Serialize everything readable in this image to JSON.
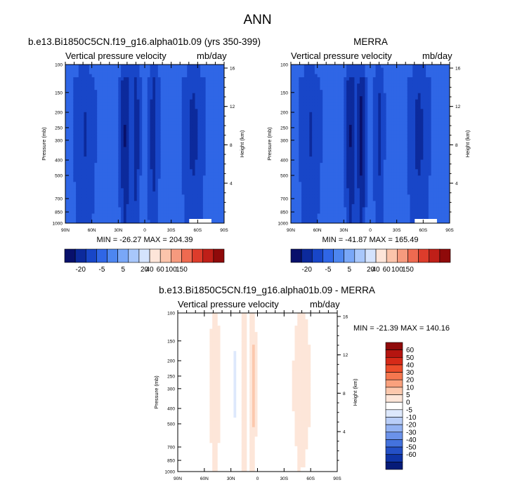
{
  "figure": {
    "title": "ANN"
  },
  "panels": [
    {
      "id": "model",
      "heading": "b.e13.Bi1850C5CN.f19_g16.alpha01b.09 (yrs 350-399)",
      "left_label": "Vertical pressure velocity",
      "right_label": "mb/day",
      "stats": "MIN = -26.27   MAX = 204.39",
      "colorbar_labels": [
        "-20",
        "-5",
        "5",
        "20",
        "40",
        "60",
        "100",
        "150"
      ]
    },
    {
      "id": "obs",
      "heading": "MERRA",
      "left_label": "Vertical pressure velocity",
      "right_label": "mb/day",
      "stats": "MIN = -41.87   MAX = 165.49",
      "colorbar_labels": [
        "-20",
        "-5",
        "5",
        "20",
        "40",
        "60",
        "100",
        "150"
      ]
    },
    {
      "id": "diff",
      "heading": "b.e13.Bi1850C5CN.f19_g16.alpha01b.09 - MERRA",
      "left_label": "Vertical pressure velocity",
      "right_label": "mb/day",
      "stats": "MIN = -21.39   MAX = 140.16",
      "colorbar_labels": [
        "60",
        "50",
        "40",
        "30",
        "20",
        "10",
        "5",
        "0",
        "-5",
        "-10",
        "-20",
        "-30",
        "-40",
        "-50",
        "-60"
      ]
    }
  ],
  "colors": {
    "abs_scale": [
      "#08106b",
      "#0c2a9c",
      "#1846c8",
      "#2f66e6",
      "#4d86f0",
      "#79a7f7",
      "#a8c7fb",
      "#d4e3fd",
      "#fde5d9",
      "#fbc4ab",
      "#f69a7e",
      "#ee6a50",
      "#dd3c2b",
      "#bf1f18",
      "#8f0a0a"
    ],
    "diff_scale": [
      "#8f0a0a",
      "#b51510",
      "#d62a18",
      "#ec4d2b",
      "#f5774f",
      "#f9a17d",
      "#fcc8ad",
      "#fde6d9",
      "#ffffff",
      "#dde8fc",
      "#b9cef8",
      "#93b2f2",
      "#6b92ea",
      "#4472dd",
      "#2450c6",
      "#0f34a6",
      "#061b78"
    ]
  },
  "chart_data": [
    {
      "type": "heatmap",
      "title": "b.e13.Bi1850C5CN.f19_g16.alpha01b.09 (yrs 350-399)",
      "variable": "Vertical pressure velocity",
      "units": "mb/day",
      "x_ticks": [
        "90N",
        "60N",
        "30N",
        "0",
        "30S",
        "60S",
        "90S"
      ],
      "y_ticks": [
        "100",
        "150",
        "200",
        "250",
        "300",
        "400",
        "500",
        "700",
        "850",
        "1000"
      ],
      "ylabel": "Pressure (mb)",
      "y2_ticks": [
        "16",
        "12",
        "8",
        "4"
      ],
      "y2label": "Height (km)",
      "min": -26.27,
      "max": 204.39,
      "levels": [
        -20,
        -5,
        5,
        20,
        40,
        60,
        100,
        150
      ],
      "features": [
        {
          "lat": 68,
          "width": 10,
          "value": -10
        },
        {
          "lat": 42,
          "width": 8,
          "value": 2
        },
        {
          "lat": 22,
          "width": 5,
          "value": -25
        },
        {
          "lat": 10,
          "width": 4,
          "value": -18
        },
        {
          "lat": -10,
          "width": 5,
          "value": -15
        },
        {
          "lat": -30,
          "width": 7,
          "value": 3
        },
        {
          "lat": -55,
          "width": 10,
          "value": -12
        }
      ]
    },
    {
      "type": "heatmap",
      "title": "MERRA",
      "variable": "Vertical pressure velocity",
      "units": "mb/day",
      "x_ticks": [
        "90N",
        "60N",
        "30N",
        "0",
        "30S",
        "60S",
        "90S"
      ],
      "y_ticks": [
        "100",
        "150",
        "200",
        "250",
        "300",
        "400",
        "500",
        "700",
        "850",
        "1000"
      ],
      "ylabel": "Pressure (mb)",
      "y2_ticks": [
        "16",
        "12",
        "8",
        "4"
      ],
      "y2label": "Height (km)",
      "min": -41.87,
      "max": 165.49,
      "levels": [
        -20,
        -5,
        5,
        20,
        40,
        60,
        100,
        150
      ],
      "features": [
        {
          "lat": 68,
          "width": 10,
          "value": -10
        },
        {
          "lat": 42,
          "width": 8,
          "value": 2
        },
        {
          "lat": 22,
          "width": 5,
          "value": -25
        },
        {
          "lat": 10,
          "width": 4,
          "value": -30
        },
        {
          "lat": -10,
          "width": 5,
          "value": -12
        },
        {
          "lat": -30,
          "width": 7,
          "value": 3
        },
        {
          "lat": -55,
          "width": 10,
          "value": -12
        }
      ]
    },
    {
      "type": "heatmap",
      "title": "b.e13.Bi1850C5CN.f19_g16.alpha01b.09 - MERRA",
      "variable": "Vertical pressure velocity",
      "units": "mb/day",
      "x_ticks": [
        "90N",
        "60N",
        "30N",
        "0",
        "30S",
        "60S",
        "90S"
      ],
      "y_ticks": [
        "100",
        "150",
        "200",
        "250",
        "300",
        "400",
        "500",
        "700",
        "850",
        "1000"
      ],
      "ylabel": "Pressure (mb)",
      "y2_ticks": [
        "16",
        "12",
        "8",
        "4"
      ],
      "y2label": "Height (km)",
      "min": -21.39,
      "max": 140.16,
      "levels": [
        -60,
        -50,
        -40,
        -30,
        -20,
        -10,
        -5,
        0,
        5,
        10,
        20,
        30,
        40,
        50,
        60
      ],
      "features": [
        {
          "lat": 75,
          "width": 10,
          "value": 3
        },
        {
          "lat": 48,
          "width": 8,
          "value": -3
        },
        {
          "lat": 25,
          "width": 5,
          "value": 4
        },
        {
          "lat": 15,
          "width": 3,
          "value": -6
        },
        {
          "lat": 5,
          "width": 3,
          "value": -8
        },
        {
          "lat": -10,
          "width": 4,
          "value": 2
        },
        {
          "lat": -50,
          "width": 12,
          "value": -3
        }
      ]
    }
  ]
}
